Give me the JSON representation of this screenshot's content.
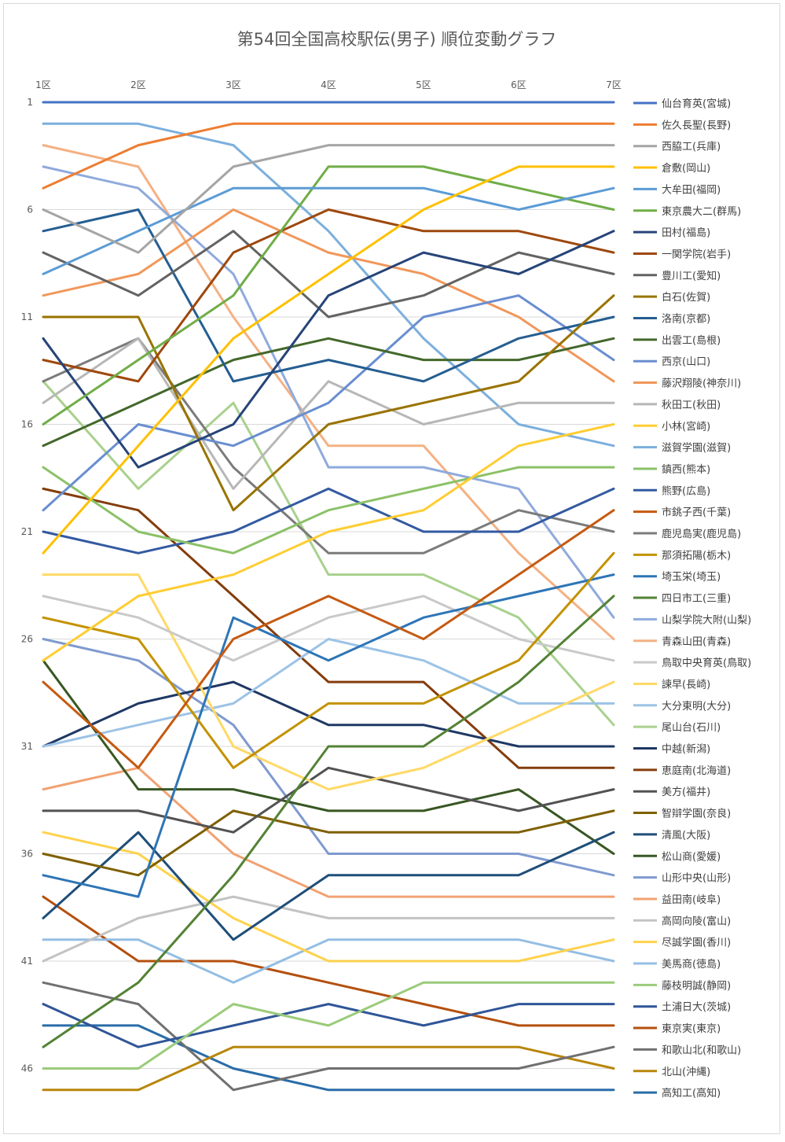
{
  "chart_data": {
    "type": "line",
    "title": "第54回全国高校駅伝(男子) 順位変動グラフ",
    "categories": [
      "1区",
      "2区",
      "3区",
      "4区",
      "5区",
      "6区",
      "7区"
    ],
    "y_ticks": [
      "1",
      "6",
      "11",
      "16",
      "21",
      "26",
      "31",
      "36",
      "41",
      "46"
    ],
    "ylim": [
      1,
      47
    ],
    "y_reversed": true,
    "grid": "horizontal",
    "legend": "right",
    "series": [
      {
        "name": "仙台育英(宮城)",
        "color": "#4472C4",
        "values": [
          1,
          1,
          1,
          1,
          1,
          1,
          1
        ]
      },
      {
        "name": "佐久長聖(長野)",
        "color": "#ED7D31",
        "values": [
          5,
          3,
          2,
          2,
          2,
          2,
          2
        ]
      },
      {
        "name": "西脇工(兵庫)",
        "color": "#A5A5A5",
        "values": [
          6,
          8,
          4,
          3,
          3,
          3,
          3
        ]
      },
      {
        "name": "倉敷(岡山)",
        "color": "#FFC000",
        "values": [
          22,
          17,
          12,
          9,
          6,
          4,
          4
        ]
      },
      {
        "name": "大牟田(福岡)",
        "color": "#5B9BD5",
        "values": [
          9,
          7,
          5,
          5,
          5,
          6,
          5
        ]
      },
      {
        "name": "東京農大二(群馬)",
        "color": "#70AD47",
        "values": [
          16,
          13,
          10,
          4,
          4,
          5,
          6
        ]
      },
      {
        "name": "田村(福島)",
        "color": "#264478",
        "values": [
          12,
          18,
          16,
          10,
          8,
          9,
          7
        ]
      },
      {
        "name": "一関学院(岩手)",
        "color": "#9E480E",
        "values": [
          13,
          14,
          8,
          6,
          7,
          7,
          8
        ]
      },
      {
        "name": "豊川工(愛知)",
        "color": "#636363",
        "values": [
          8,
          10,
          7,
          11,
          10,
          8,
          9
        ]
      },
      {
        "name": "白石(佐賀)",
        "color": "#997300",
        "values": [
          11,
          11,
          20,
          16,
          15,
          14,
          10
        ]
      },
      {
        "name": "洛南(京都)",
        "color": "#255E91",
        "values": [
          7,
          6,
          14,
          13,
          14,
          12,
          11
        ]
      },
      {
        "name": "出雲工(島根)",
        "color": "#43682B",
        "values": [
          17,
          15,
          13,
          12,
          13,
          13,
          12
        ]
      },
      {
        "name": "西京(山口)",
        "color": "#698ED0",
        "values": [
          20,
          16,
          17,
          15,
          11,
          10,
          13
        ]
      },
      {
        "name": "藤沢翔陵(神奈川)",
        "color": "#F1975A",
        "values": [
          10,
          9,
          6,
          8,
          9,
          11,
          14
        ]
      },
      {
        "name": "秋田工(秋田)",
        "color": "#B7B7B7",
        "values": [
          15,
          12,
          19,
          14,
          16,
          15,
          15
        ]
      },
      {
        "name": "小林(宮崎)",
        "color": "#FFCD33",
        "values": [
          27,
          24,
          23,
          21,
          20,
          17,
          16
        ]
      },
      {
        "name": "滋賀学園(滋賀)",
        "color": "#7CAFDD",
        "values": [
          2,
          2,
          3,
          7,
          12,
          16,
          17
        ]
      },
      {
        "name": "鎮西(熊本)",
        "color": "#8CC168",
        "values": [
          18,
          21,
          22,
          20,
          19,
          18,
          18
        ]
      },
      {
        "name": "熊野(広島)",
        "color": "#335AA1",
        "values": [
          21,
          22,
          21,
          19,
          21,
          21,
          19
        ]
      },
      {
        "name": "市銚子西(千葉)",
        "color": "#C55A11",
        "values": [
          28,
          32,
          26,
          24,
          26,
          23,
          20
        ]
      },
      {
        "name": "鹿児島実(鹿児島)",
        "color": "#7B7B7B",
        "values": [
          14,
          12,
          18,
          22,
          22,
          20,
          21
        ]
      },
      {
        "name": "那須拓陽(栃木)",
        "color": "#C39200",
        "values": [
          25,
          26,
          32,
          29,
          29,
          27,
          22
        ]
      },
      {
        "name": "埼玉栄(埼玉)",
        "color": "#2E75B6",
        "values": [
          37,
          38,
          25,
          27,
          25,
          24,
          23
        ]
      },
      {
        "name": "四日市工(三重)",
        "color": "#548235",
        "values": [
          45,
          42,
          37,
          31,
          31,
          28,
          24
        ]
      },
      {
        "name": "山梨学院大附(山梨)",
        "color": "#8FAADC",
        "values": [
          4,
          5,
          9,
          18,
          18,
          19,
          25
        ]
      },
      {
        "name": "青森山田(青森)",
        "color": "#F4B183",
        "values": [
          3,
          4,
          11,
          17,
          17,
          22,
          26
        ]
      },
      {
        "name": "鳥取中央育英(鳥取)",
        "color": "#C9C9C9",
        "values": [
          24,
          25,
          27,
          25,
          24,
          26,
          27
        ]
      },
      {
        "name": "諫早(長崎)",
        "color": "#FFD966",
        "values": [
          23,
          23,
          31,
          33,
          32,
          30,
          28
        ]
      },
      {
        "name": "大分東明(大分)",
        "color": "#9DC3E6",
        "values": [
          31,
          30,
          29,
          26,
          27,
          29,
          29
        ]
      },
      {
        "name": "尾山台(石川)",
        "color": "#A9D18E",
        "values": [
          14,
          19,
          15,
          23,
          23,
          25,
          30
        ]
      },
      {
        "name": "中越(新潟)",
        "color": "#1F3864",
        "values": [
          31,
          29,
          28,
          30,
          30,
          31,
          31
        ]
      },
      {
        "name": "恵庭南(北海道)",
        "color": "#843C0C",
        "values": [
          19,
          20,
          24,
          28,
          28,
          32,
          32
        ]
      },
      {
        "name": "美方(福井)",
        "color": "#525252",
        "values": [
          34,
          34,
          35,
          32,
          33,
          34,
          33
        ]
      },
      {
        "name": "智辯学園(奈良)",
        "color": "#7F6000",
        "values": [
          36,
          37,
          34,
          35,
          35,
          35,
          34
        ]
      },
      {
        "name": "清風(大阪)",
        "color": "#1F4E79",
        "values": [
          39,
          35,
          40,
          37,
          37,
          37,
          35
        ]
      },
      {
        "name": "松山商(愛媛)",
        "color": "#385723",
        "values": [
          27,
          33,
          33,
          34,
          34,
          33,
          36
        ]
      },
      {
        "name": "山形中央(山形)",
        "color": "#7F9ACF",
        "values": [
          26,
          27,
          30,
          36,
          36,
          36,
          37
        ]
      },
      {
        "name": "益田南(岐阜)",
        "color": "#F2A272",
        "values": [
          33,
          32,
          36,
          38,
          38,
          38,
          38
        ]
      },
      {
        "name": "高岡向陵(富山)",
        "color": "#C3C3C3",
        "values": [
          41,
          39,
          38,
          39,
          39,
          39,
          39
        ]
      },
      {
        "name": "尽誠学園(香川)",
        "color": "#FFD24D",
        "values": [
          35,
          36,
          39,
          41,
          41,
          41,
          40
        ]
      },
      {
        "name": "美馬商(徳島)",
        "color": "#94BEE3",
        "values": [
          40,
          40,
          42,
          40,
          40,
          40,
          41
        ]
      },
      {
        "name": "藤枝明誠(静岡)",
        "color": "#9BCB7A",
        "values": [
          46,
          46,
          43,
          44,
          42,
          42,
          42
        ]
      },
      {
        "name": "土浦日大(茨城)",
        "color": "#2F5597",
        "values": [
          43,
          45,
          44,
          43,
          44,
          43,
          43
        ]
      },
      {
        "name": "東京実(東京)",
        "color": "#B4500F",
        "values": [
          38,
          41,
          41,
          42,
          43,
          44,
          44
        ]
      },
      {
        "name": "和歌山北(和歌山)",
        "color": "#707070",
        "values": [
          42,
          43,
          47,
          46,
          46,
          46,
          45
        ]
      },
      {
        "name": "北山(沖縄)",
        "color": "#B8860B",
        "values": [
          47,
          47,
          45,
          45,
          45,
          45,
          46
        ]
      },
      {
        "name": "高知工(高知)",
        "color": "#2A6CA8",
        "values": [
          44,
          44,
          46,
          47,
          47,
          47,
          47
        ]
      }
    ]
  }
}
